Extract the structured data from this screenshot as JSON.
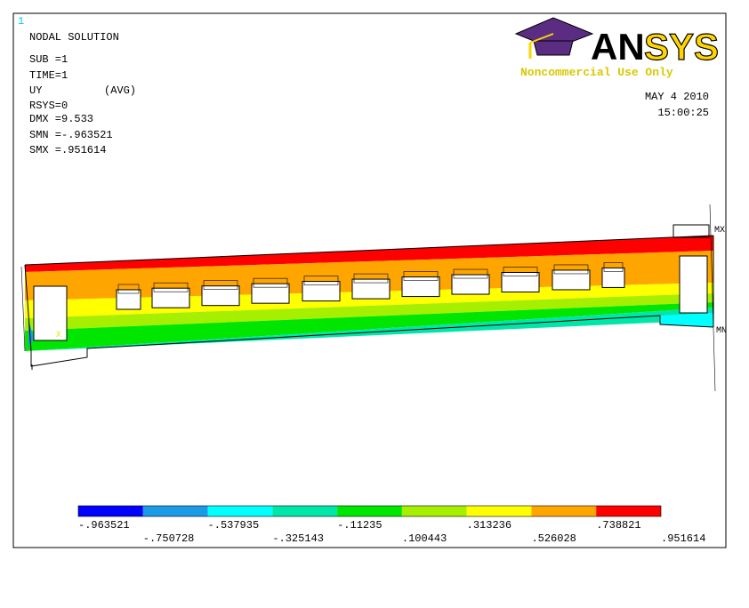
{
  "window_number": "1",
  "info": {
    "title": "NODAL SOLUTION",
    "lines": [
      "SUB =1",
      "TIME=1",
      "UY",
      "RSYS=0",
      "DMX =9.533",
      "SMN =-.963521",
      "SMX =.951614"
    ],
    "avg": "(AVG)"
  },
  "date": "MAY  4 2010",
  "time": "15:00:25",
  "logo": {
    "text": [
      "AN",
      "SYS"
    ],
    "tagline": "Noncommercial Use Only"
  },
  "markers": {
    "max": "MX",
    "min": "MN",
    "axis": "X"
  },
  "legend": {
    "colors": [
      "#0000ff",
      "#1a9be6",
      "#00ffff",
      "#00e6a8",
      "#00e600",
      "#a6ef00",
      "#ffff00",
      "#ffa500",
      "#ff0000"
    ],
    "labels": [
      "-.963521",
      "-.750728",
      "-.537935",
      "-.325143",
      "-.11235",
      ".100443",
      ".313236",
      ".526028",
      ".738821",
      ".951614"
    ]
  }
}
